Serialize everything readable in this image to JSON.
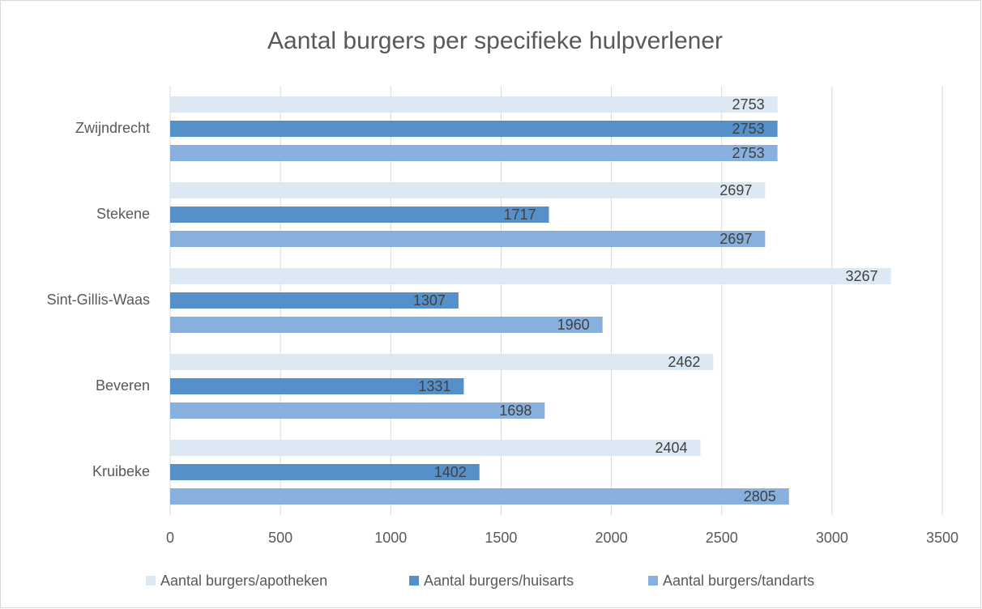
{
  "chart_data": {
    "type": "hbar",
    "title": "Aantal burgers per specifieke hulpverlener",
    "categories": [
      "Zwijndrecht",
      "Stekene",
      "Sint-Gillis-Waas",
      "Beveren",
      "Kruibeke"
    ],
    "series": [
      {
        "name": "Aantal burgers/apotheken",
        "color": "#dde8f5",
        "values": [
          2753,
          2697,
          3267,
          2462,
          2404
        ]
      },
      {
        "name": "Aantal burgers/huisarts",
        "color": "#5590cb",
        "values": [
          2753,
          1717,
          1307,
          1331,
          1402
        ]
      },
      {
        "name": "Aantal burgers/tandarts",
        "color": "#88b0de",
        "values": [
          2753,
          2697,
          1960,
          1698,
          2805
        ]
      }
    ],
    "xlim": [
      0,
      3500
    ],
    "xticks": [
      0,
      500,
      1000,
      1500,
      2000,
      2500,
      3000,
      3500
    ],
    "grid": true,
    "legend": "bottom"
  }
}
